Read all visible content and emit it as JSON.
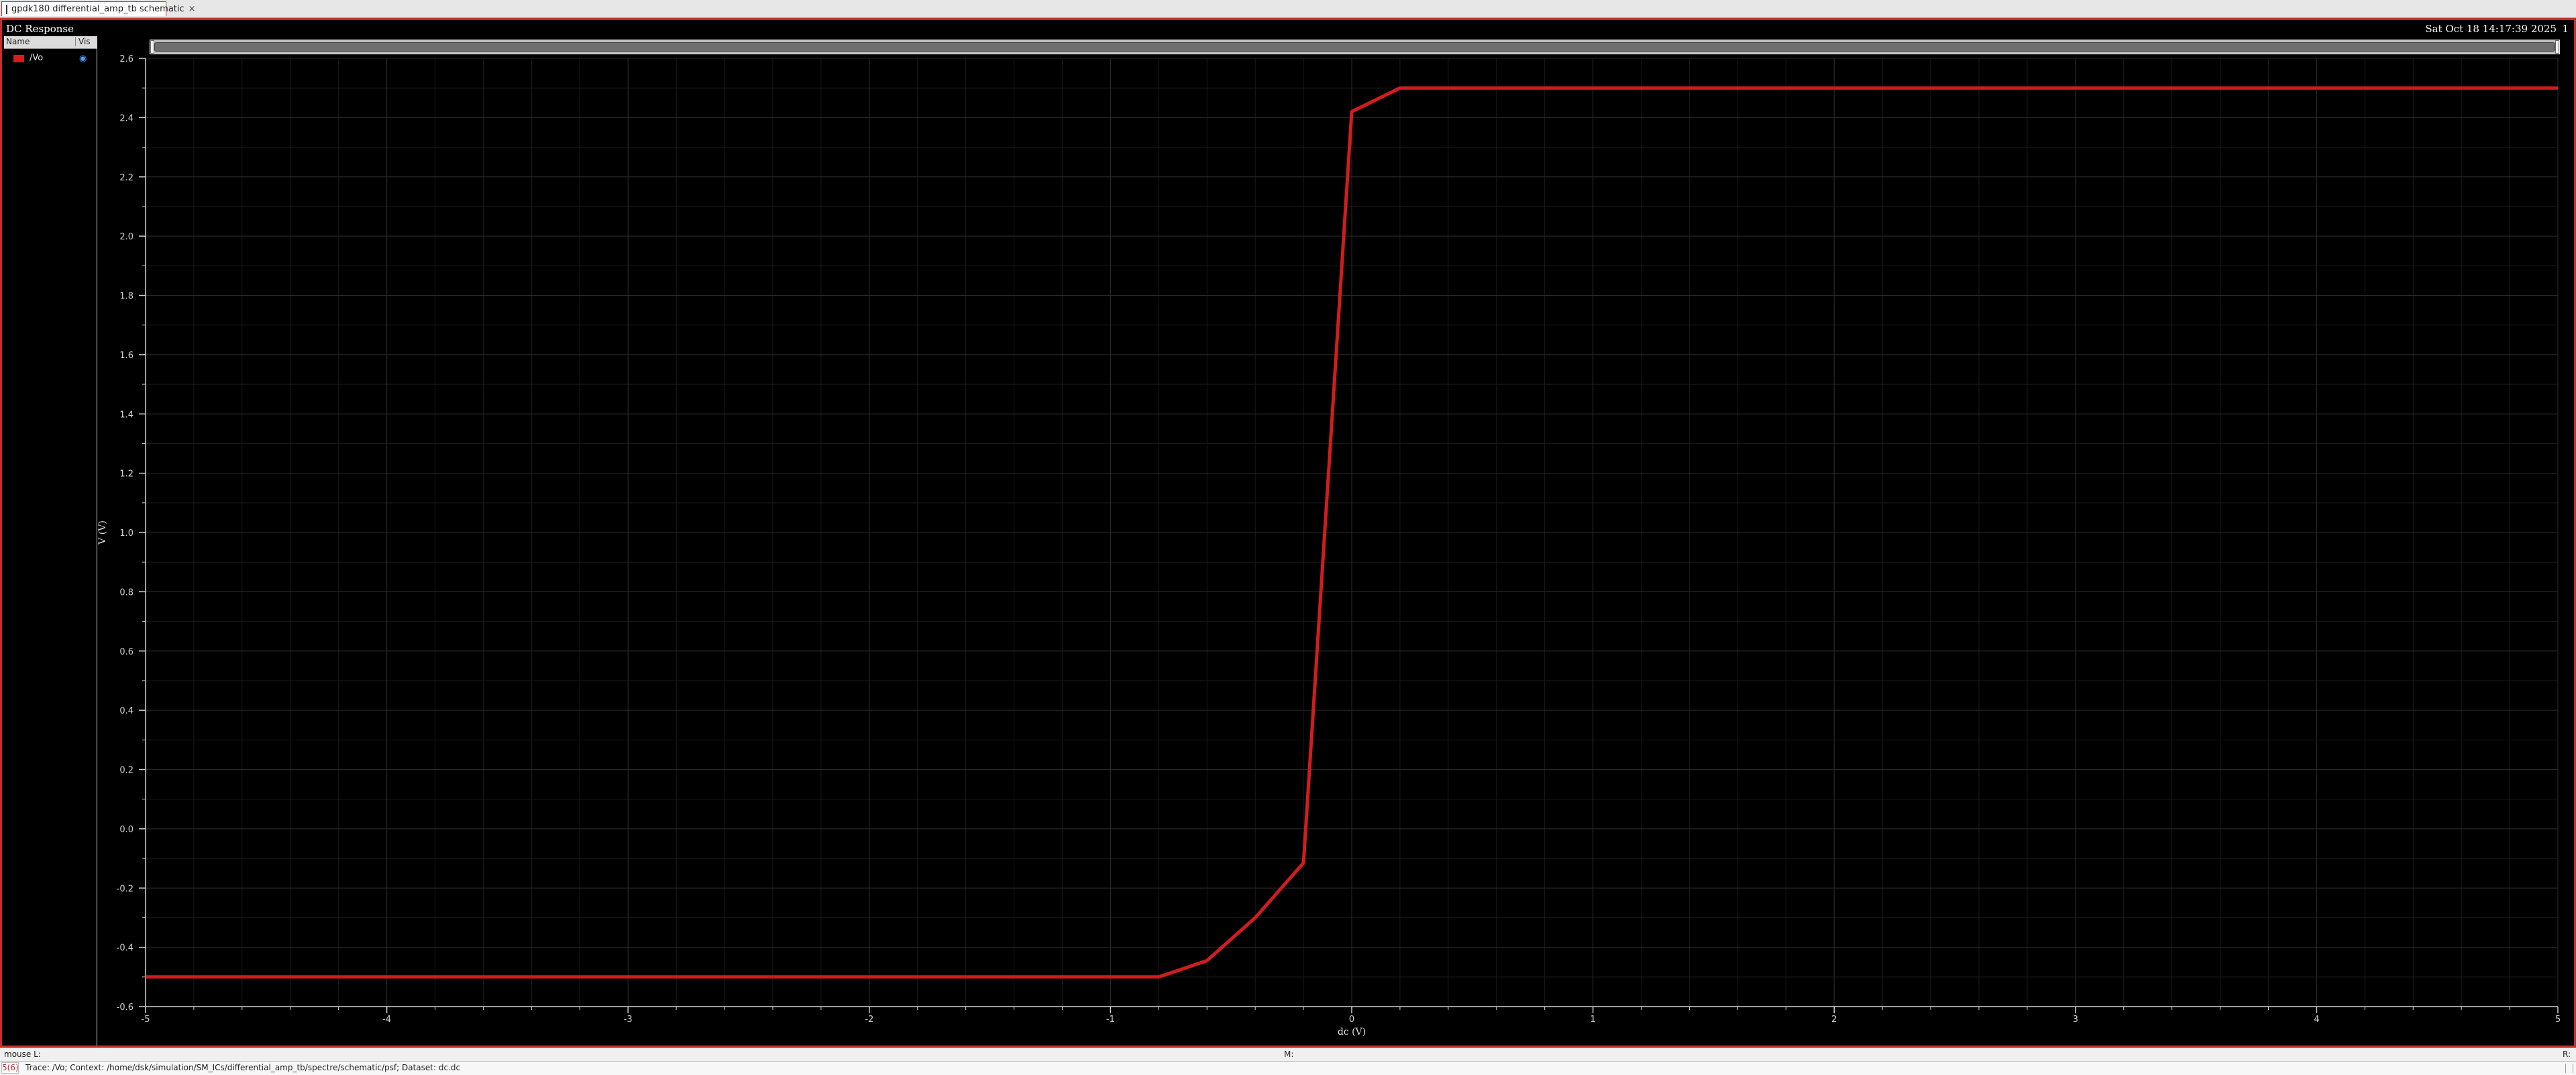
{
  "tab": {
    "label": "gpdk180 differential_amp_tb schematic",
    "close_glyph": "×"
  },
  "plot": {
    "title": "DC Response",
    "date": "Sat Oct 18 14:17:39 2025",
    "index": "1"
  },
  "sidebar": {
    "header_name": "Name",
    "header_vis": "Vis",
    "legend": [
      {
        "label": "/Vo",
        "color": "#d11d1d",
        "visible_icon": "eye-icon"
      }
    ]
  },
  "status": {
    "left": "mouse L:",
    "middle": "M:",
    "right": "R:"
  },
  "trace": {
    "count": "5(6)",
    "text": "Trace: /Vo; Context: /home/dsk/simulation/SM_ICs/differential_amp_tb/spectre/schematic/psf; Dataset: dc.dc"
  },
  "colors": {
    "trace": "#d11d1d",
    "background": "#000000",
    "frame": "#c72d2d"
  },
  "chart_data": {
    "type": "line",
    "xlabel": "dc (V)",
    "ylabel": "V (V)",
    "xlim": [
      -5,
      5
    ],
    "ylim": [
      -0.6,
      2.6
    ],
    "x_ticks": [
      -5,
      -4,
      -3,
      -2,
      -1,
      0,
      1,
      2,
      3,
      4,
      5
    ],
    "y_ticks": [
      -0.6,
      -0.4,
      -0.2,
      0.0,
      0.2,
      0.4,
      0.6,
      0.8,
      1.0,
      1.2,
      1.4,
      1.6,
      1.8,
      2.0,
      2.2,
      2.4,
      2.6
    ],
    "x_tick_labels": [
      "-5",
      "-4",
      "-3",
      "-2",
      "-1",
      "0",
      "1",
      "2",
      "3",
      "4",
      "5"
    ],
    "y_tick_labels": [
      "-0.6",
      "-0.4",
      "-0.2",
      "0.0",
      "0.2",
      "0.4",
      "0.6",
      "0.8",
      "1.0",
      "1.2",
      "1.4",
      "1.6",
      "1.8",
      "2.0",
      "2.2",
      "2.4",
      "2.6"
    ],
    "grid": true,
    "series": [
      {
        "name": "/Vo",
        "color": "#d11d1d",
        "x": [
          -5,
          -0.8,
          -0.6,
          -0.4,
          -0.2,
          0.0,
          0.2,
          0.6,
          5
        ],
        "y": [
          -0.5,
          -0.5,
          -0.445,
          -0.3,
          -0.115,
          2.42,
          2.5,
          2.5,
          2.5
        ]
      }
    ]
  }
}
